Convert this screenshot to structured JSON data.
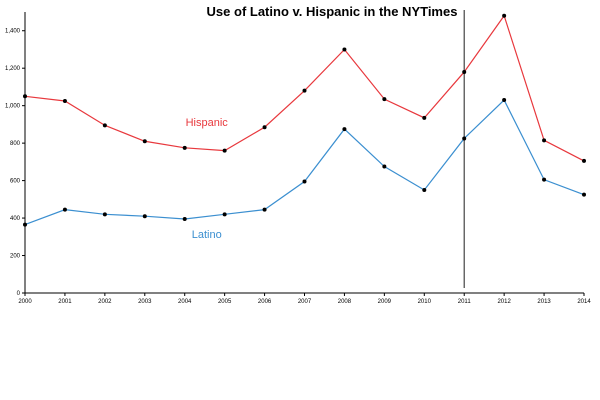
{
  "chart_data": {
    "type": "line",
    "title": "Use of Latino v. Hispanic in the NYTimes",
    "xlabel": "",
    "ylabel": "",
    "x": [
      "2000",
      "2001",
      "2002",
      "2003",
      "2004",
      "2005",
      "2006",
      "2007",
      "2008",
      "2009",
      "2010",
      "2011",
      "2012",
      "2013",
      "2014"
    ],
    "ylim": [
      0,
      1500
    ],
    "yticks": [
      0,
      200,
      400,
      600,
      800,
      1000,
      1200,
      1400
    ],
    "ytick_labels": [
      "0",
      "200",
      "400",
      "600",
      "800",
      "1,000",
      "1,200",
      "1,400"
    ],
    "series": [
      {
        "name": "Hispanic",
        "color": "#e8383d",
        "values": [
          1050,
          1025,
          895,
          810,
          775,
          760,
          885,
          1080,
          1300,
          1035,
          935,
          1180,
          1480,
          815,
          705
        ]
      },
      {
        "name": "Latino",
        "color": "#3b8fd0",
        "values": [
          365,
          445,
          420,
          410,
          395,
          420,
          445,
          595,
          875,
          675,
          550,
          825,
          1030,
          605,
          525
        ]
      }
    ],
    "marker_x": "2011",
    "grid": false,
    "legend": "inline labels"
  }
}
